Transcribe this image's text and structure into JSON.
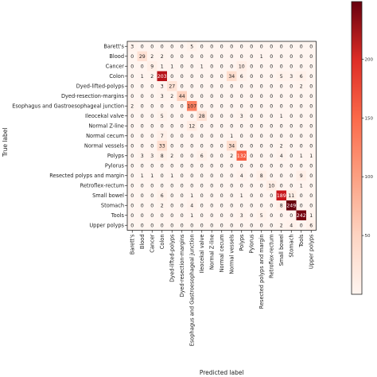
{
  "chart_data": {
    "type": "heatmap",
    "title": "",
    "xlabel": "Predicted label",
    "ylabel": "True label",
    "colormap": "Reds",
    "colorbar_range": [
      0,
      249
    ],
    "colorbar_ticks": [
      50,
      100,
      150,
      200
    ],
    "classes": [
      "Barett's",
      "Blood",
      "Cancer",
      "Colon",
      "Dyed-lifted-polyps",
      "Dyed-resection-margins",
      "Esophagus and Gastroesophageal junction",
      "Ileocekal valve",
      "Normal Z-line",
      "Normal cecum",
      "Normal vessels",
      "Polyps",
      "Pylorus",
      "Resected polyps and margin",
      "Retroflex-rectum",
      "Small bowel",
      "Stomach",
      "Tools",
      "Upper polyps"
    ],
    "matrix": [
      [
        3,
        0,
        0,
        0,
        0,
        0,
        5,
        0,
        0,
        0,
        0,
        0,
        0,
        0,
        0,
        0,
        0,
        0,
        0
      ],
      [
        0,
        29,
        2,
        2,
        0,
        0,
        0,
        0,
        0,
        0,
        0,
        0,
        0,
        1,
        0,
        0,
        0,
        0,
        0
      ],
      [
        0,
        0,
        9,
        1,
        1,
        0,
        0,
        1,
        0,
        0,
        0,
        10,
        0,
        0,
        0,
        0,
        0,
        0,
        0
      ],
      [
        0,
        1,
        2,
        203,
        0,
        0,
        0,
        0,
        0,
        0,
        34,
        6,
        0,
        0,
        0,
        5,
        3,
        6,
        0
      ],
      [
        0,
        0,
        0,
        3,
        27,
        0,
        0,
        0,
        0,
        0,
        0,
        0,
        0,
        0,
        0,
        0,
        0,
        2,
        0
      ],
      [
        0,
        0,
        0,
        3,
        2,
        44,
        0,
        0,
        0,
        0,
        0,
        0,
        0,
        0,
        0,
        0,
        0,
        0,
        0
      ],
      [
        2,
        0,
        0,
        0,
        0,
        0,
        107,
        0,
        0,
        0,
        0,
        0,
        0,
        0,
        0,
        0,
        0,
        0,
        0
      ],
      [
        0,
        0,
        0,
        5,
        0,
        0,
        0,
        28,
        0,
        0,
        0,
        3,
        0,
        0,
        0,
        1,
        0,
        0,
        0
      ],
      [
        0,
        0,
        0,
        0,
        0,
        0,
        12,
        0,
        0,
        0,
        0,
        0,
        0,
        0,
        0,
        0,
        0,
        0,
        0
      ],
      [
        0,
        0,
        0,
        7,
        0,
        0,
        0,
        0,
        0,
        0,
        1,
        0,
        0,
        0,
        0,
        0,
        0,
        0,
        0
      ],
      [
        0,
        0,
        0,
        33,
        0,
        0,
        0,
        0,
        0,
        0,
        34,
        0,
        0,
        0,
        0,
        2,
        0,
        0,
        0
      ],
      [
        0,
        3,
        3,
        8,
        2,
        0,
        0,
        6,
        0,
        0,
        2,
        132,
        0,
        0,
        0,
        4,
        0,
        1,
        1
      ],
      [
        0,
        0,
        0,
        0,
        0,
        0,
        0,
        0,
        0,
        0,
        0,
        0,
        0,
        0,
        0,
        0,
        0,
        0,
        0
      ],
      [
        0,
        1,
        1,
        0,
        1,
        0,
        0,
        0,
        0,
        0,
        0,
        4,
        0,
        8,
        0,
        0,
        0,
        9,
        0
      ],
      [
        0,
        0,
        0,
        0,
        0,
        0,
        0,
        0,
        0,
        0,
        0,
        0,
        0,
        0,
        10,
        0,
        0,
        1,
        0
      ],
      [
        0,
        0,
        0,
        6,
        0,
        0,
        1,
        0,
        0,
        0,
        0,
        1,
        0,
        0,
        0,
        189,
        11,
        0,
        0
      ],
      [
        0,
        0,
        0,
        2,
        0,
        0,
        4,
        0,
        0,
        0,
        0,
        0,
        0,
        0,
        0,
        8,
        249,
        0,
        0
      ],
      [
        0,
        0,
        0,
        0,
        0,
        0,
        1,
        0,
        0,
        0,
        0,
        3,
        0,
        5,
        0,
        0,
        0,
        242,
        1
      ],
      [
        0,
        0,
        0,
        0,
        0,
        0,
        0,
        0,
        0,
        0,
        0,
        0,
        0,
        0,
        0,
        2,
        4,
        0,
        6
      ]
    ]
  }
}
